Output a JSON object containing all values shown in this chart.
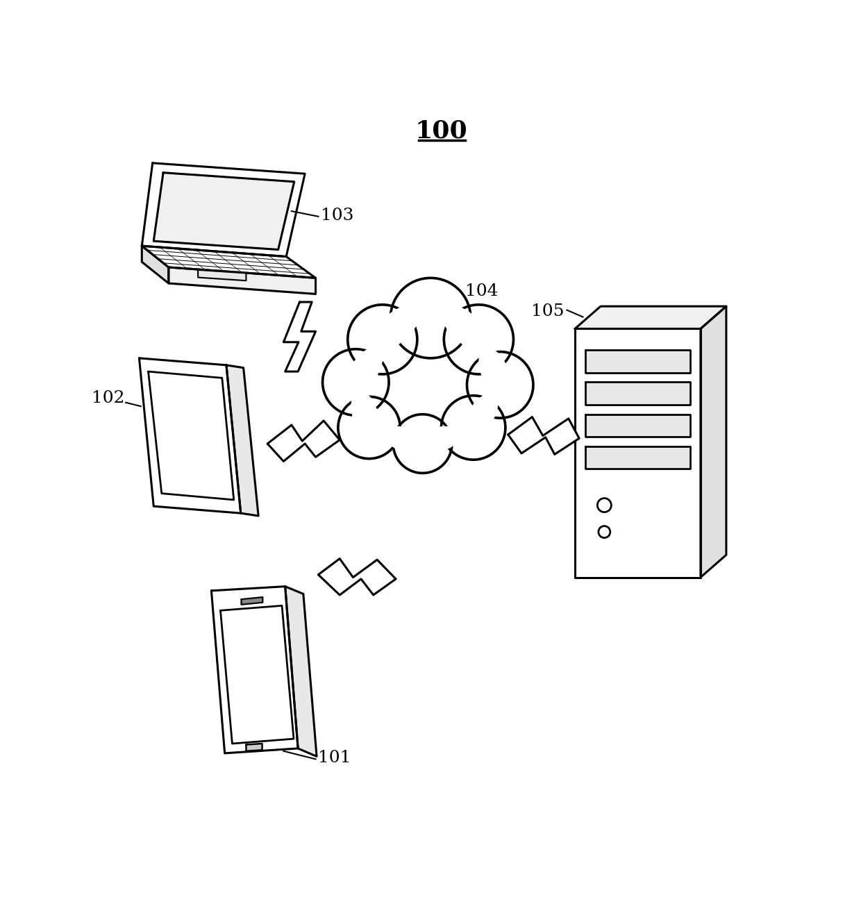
{
  "title": "100",
  "background_color": "#ffffff",
  "line_color": "#000000",
  "label_101": "101",
  "label_102": "102",
  "label_103": "103",
  "label_104": "104",
  "label_105": "105",
  "line_width": 2.2,
  "label_fontsize": 18
}
